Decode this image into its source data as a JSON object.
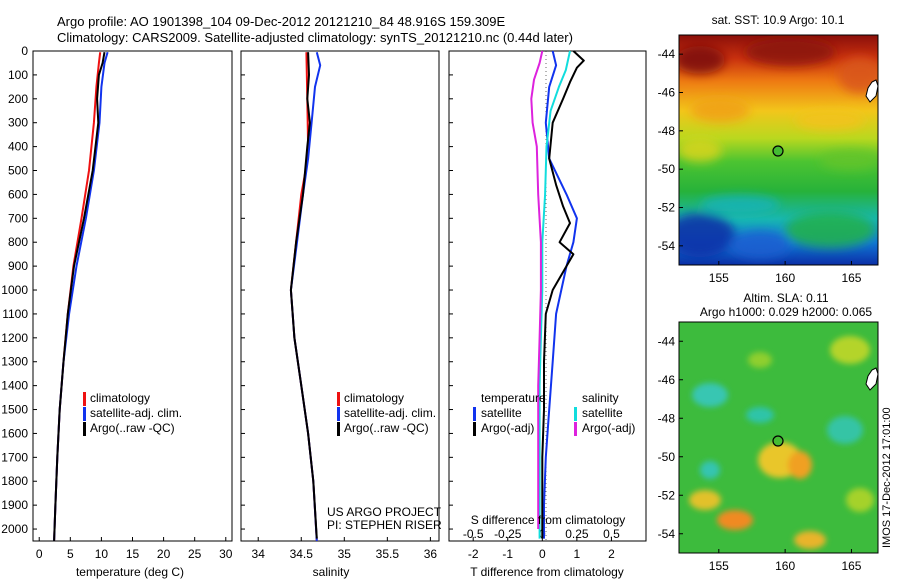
{
  "header": {
    "line1": "Argo profile: AO 1901398_104 09-Dec-2012 20121210_84 48.916S 159.309E",
    "line2": "Climatology: CARS2009. Satellite-adjusted climatology: synTS_20121210.nc (0.44d later)"
  },
  "credits": {
    "project": "US ARGO PROJECT",
    "pi": "PI: STEPHEN RISER",
    "stamp": "IMOS 17-Dec-2012 17:01:00"
  },
  "colors": {
    "climatology": "#ee1111",
    "satellite": "#1133ee",
    "argo": "#000000",
    "sal_sat": "#11dddd",
    "sal_argo": "#dd22dd"
  },
  "chart_data": [
    {
      "type": "line",
      "xlabel": "temperature (deg C)",
      "ylabel": "",
      "xlim": [
        -1,
        31
      ],
      "ylim": [
        2050,
        0
      ],
      "x_ticks": [
        "0",
        "5",
        "10",
        "15",
        "20",
        "25",
        "30"
      ],
      "y_ticks": [
        "0",
        "100",
        "200",
        "300",
        "400",
        "500",
        "600",
        "700",
        "800",
        "900",
        "1000",
        "1100",
        "1200",
        "1300",
        "1400",
        "1500",
        "1600",
        "1700",
        "1800",
        "1900",
        "2000"
      ],
      "legend": [
        "climatology",
        "satellite-adj. clim.",
        "Argo(..raw -QC)"
      ],
      "series": [
        {
          "name": "climatology",
          "color": "#ee1111",
          "points": [
            [
              9.8,
              5
            ],
            [
              9.6,
              50
            ],
            [
              9.2,
              150
            ],
            [
              8.8,
              300
            ],
            [
              8.0,
              500
            ],
            [
              6.8,
              700
            ],
            [
              5.5,
              900
            ],
            [
              4.6,
              1100
            ],
            [
              3.9,
              1300
            ],
            [
              3.3,
              1500
            ],
            [
              2.9,
              1700
            ],
            [
              2.6,
              1900
            ],
            [
              2.4,
              2050
            ]
          ]
        },
        {
          "name": "satellite-adj. clim.",
          "color": "#1133ee",
          "points": [
            [
              11.0,
              5
            ],
            [
              10.5,
              50
            ],
            [
              10.0,
              150
            ],
            [
              9.7,
              300
            ],
            [
              8.8,
              500
            ],
            [
              7.5,
              700
            ],
            [
              6.0,
              900
            ],
            [
              4.8,
              1100
            ],
            [
              3.9,
              1300
            ],
            [
              3.3,
              1500
            ],
            [
              2.9,
              1700
            ],
            [
              2.6,
              1900
            ],
            [
              2.4,
              2050
            ]
          ]
        },
        {
          "name": "Argo(..raw -QC)",
          "color": "#000000",
          "points": [
            [
              10.5,
              5
            ],
            [
              10.2,
              50
            ],
            [
              9.6,
              100
            ],
            [
              9.3,
              200
            ],
            [
              9.5,
              300
            ],
            [
              8.6,
              500
            ],
            [
              7.2,
              700
            ],
            [
              5.6,
              900
            ],
            [
              4.6,
              1100
            ],
            [
              3.9,
              1300
            ],
            [
              3.3,
              1500
            ],
            [
              2.9,
              1700
            ],
            [
              2.6,
              1900
            ],
            [
              2.4,
              2050
            ]
          ]
        }
      ]
    },
    {
      "type": "line",
      "xlabel": "salinity",
      "ylabel": "",
      "xlim": [
        33.8,
        36.1
      ],
      "ylim": [
        2050,
        0
      ],
      "x_ticks": [
        "34",
        "34.5",
        "35",
        "35.5",
        "36"
      ],
      "legend": [
        "climatology",
        "satellite-adj. clim.",
        "Argo(..raw -QC)"
      ],
      "series": [
        {
          "name": "climatology",
          "color": "#ee1111",
          "points": [
            [
              34.56,
              5
            ],
            [
              34.57,
              200
            ],
            [
              34.58,
              400
            ],
            [
              34.55,
              500
            ],
            [
              34.5,
              600
            ],
            [
              34.44,
              800
            ],
            [
              34.38,
              1000
            ],
            [
              34.42,
              1200
            ],
            [
              34.5,
              1400
            ],
            [
              34.58,
              1600
            ],
            [
              34.64,
              1800
            ],
            [
              34.68,
              2050
            ]
          ]
        },
        {
          "name": "satellite-adj. clim.",
          "color": "#1133ee",
          "points": [
            [
              34.68,
              5
            ],
            [
              34.72,
              60
            ],
            [
              34.66,
              150
            ],
            [
              34.62,
              300
            ],
            [
              34.58,
              450
            ],
            [
              34.52,
              600
            ],
            [
              34.45,
              800
            ],
            [
              34.38,
              1000
            ],
            [
              34.42,
              1200
            ],
            [
              34.5,
              1400
            ],
            [
              34.58,
              1600
            ],
            [
              34.64,
              1800
            ],
            [
              34.68,
              2050
            ]
          ]
        },
        {
          "name": "Argo(..raw -QC)",
          "color": "#000000",
          "points": [
            [
              34.58,
              5
            ],
            [
              34.59,
              100
            ],
            [
              34.57,
              200
            ],
            [
              34.6,
              300
            ],
            [
              34.57,
              400
            ],
            [
              34.52,
              600
            ],
            [
              34.44,
              800
            ],
            [
              34.38,
              1000
            ],
            [
              34.42,
              1200
            ],
            [
              34.5,
              1400
            ],
            [
              34.58,
              1600
            ],
            [
              34.64,
              1800
            ],
            [
              34.68,
              2040
            ]
          ]
        }
      ]
    },
    {
      "type": "line",
      "xlabel": "T difference from climatology",
      "xlabel_top": "S difference from climatology",
      "xlim": [
        -2.7,
        3.0
      ],
      "ylim": [
        2050,
        0
      ],
      "x_ticks": [
        "-2",
        "-1",
        "0",
        "1",
        "2"
      ],
      "x_ticks_top": [
        "-0.5",
        "-0.25",
        "0",
        "0.25",
        "0.5"
      ],
      "legend_temperature": [
        "temperature",
        "satellite",
        "Argo(-adj)"
      ],
      "legend_salinity": [
        "salinity",
        "satellite",
        "Argo(-adj)"
      ],
      "series": [
        {
          "name": "T satellite",
          "color": "#1133ee",
          "points": [
            [
              0.3,
              0
            ],
            [
              0.4,
              60
            ],
            [
              0.2,
              150
            ],
            [
              0.1,
              300
            ],
            [
              0.2,
              450
            ],
            [
              0.7,
              600
            ],
            [
              1.0,
              700
            ],
            [
              0.9,
              800
            ],
            [
              0.7,
              900
            ],
            [
              0.4,
              1100
            ],
            [
              0.3,
              1300
            ],
            [
              0.2,
              1500
            ],
            [
              0.1,
              1700
            ],
            [
              0.05,
              1900
            ],
            [
              0.05,
              2040
            ]
          ]
        },
        {
          "name": "T Argo(-adj)",
          "color": "#000000",
          "points": [
            [
              0.9,
              0
            ],
            [
              1.2,
              40
            ],
            [
              1.0,
              70
            ],
            [
              0.8,
              130
            ],
            [
              0.6,
              200
            ],
            [
              0.3,
              300
            ],
            [
              0.2,
              450
            ],
            [
              0.4,
              560
            ],
            [
              0.6,
              650
            ],
            [
              0.8,
              720
            ],
            [
              0.5,
              800
            ],
            [
              0.9,
              850
            ],
            [
              0.7,
              900
            ],
            [
              0.3,
              1000
            ],
            [
              0.1,
              1100
            ],
            [
              0.05,
              1300
            ],
            [
              0.05,
              1500
            ],
            [
              0.0,
              1700
            ],
            [
              0.0,
              1900
            ],
            [
              0.0,
              2040
            ]
          ]
        },
        {
          "name": "S satellite",
          "color": "#11dddd",
          "points": [
            [
              0.2,
              0
            ],
            [
              0.17,
              80
            ],
            [
              0.12,
              150
            ],
            [
              0.06,
              250
            ],
            [
              0.03,
              400
            ],
            [
              0.02,
              600
            ],
            [
              0.0,
              800
            ],
            [
              0.0,
              1000
            ],
            [
              -0.01,
              1200
            ],
            [
              -0.02,
              1400
            ],
            [
              -0.02,
              1600
            ],
            [
              -0.02,
              1800
            ],
            [
              -0.02,
              2040
            ]
          ]
        },
        {
          "name": "S Argo(-adj)",
          "color": "#dd22dd",
          "points": [
            [
              0.0,
              0
            ],
            [
              -0.02,
              50
            ],
            [
              -0.06,
              120
            ],
            [
              -0.08,
              200
            ],
            [
              -0.07,
              300
            ],
            [
              -0.04,
              400
            ],
            [
              -0.03,
              600
            ],
            [
              -0.01,
              800
            ],
            [
              -0.01,
              1000
            ],
            [
              -0.02,
              1200
            ],
            [
              -0.03,
              1400
            ],
            [
              -0.03,
              1600
            ],
            [
              -0.03,
              1800
            ],
            [
              -0.03,
              2000
            ]
          ]
        }
      ]
    },
    {
      "type": "heatmap",
      "title": "sat. SST: 10.9 Argo: 10.1",
      "xlim": [
        152,
        167
      ],
      "ylim": [
        -55,
        -43
      ],
      "x_ticks": [
        "155",
        "160",
        "165"
      ],
      "y_ticks": [
        "-44",
        "-46",
        "-48",
        "-50",
        "-52",
        "-54"
      ],
      "marker": {
        "lon": 159.3,
        "lat": -48.9
      }
    },
    {
      "type": "heatmap",
      "title": "Altim. SLA: 0.11",
      "subtitle": "Argo h1000: 0.029 h2000: 0.065",
      "xlim": [
        152,
        167
      ],
      "ylim": [
        -55,
        -43
      ],
      "x_ticks": [
        "155",
        "160",
        "165"
      ],
      "y_ticks": [
        "-44",
        "-46",
        "-48",
        "-50",
        "-52",
        "-54"
      ],
      "marker": {
        "lon": 159.3,
        "lat": -48.9
      }
    }
  ]
}
